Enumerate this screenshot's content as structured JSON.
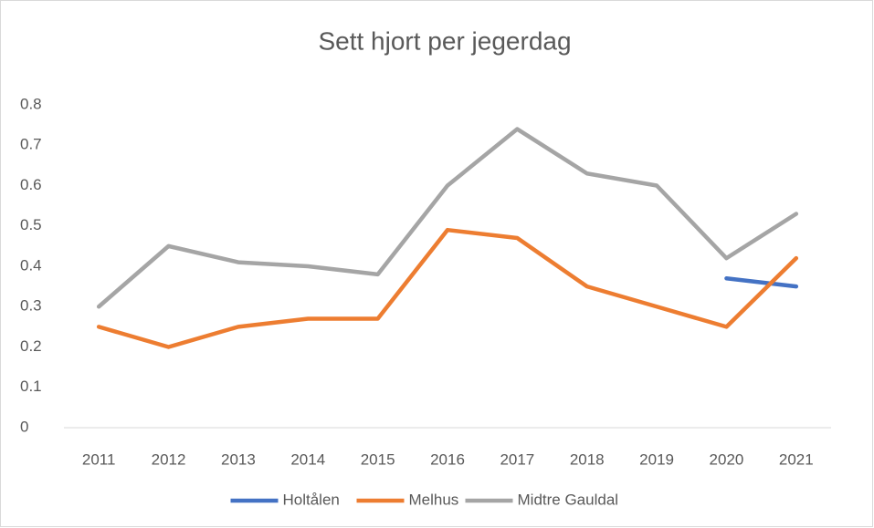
{
  "chart_data": {
    "type": "line",
    "title": "Sett hjort per jegerdag",
    "categories": [
      "2011",
      "2012",
      "2013",
      "2014",
      "2015",
      "2016",
      "2017",
      "2018",
      "2019",
      "2020",
      "2021"
    ],
    "series": [
      {
        "name": "Holtålen",
        "color": "#4472c4",
        "values": [
          null,
          null,
          null,
          null,
          null,
          null,
          null,
          null,
          null,
          0.37,
          0.35
        ]
      },
      {
        "name": "Melhus",
        "color": "#ed7d31",
        "values": [
          0.25,
          0.2,
          0.25,
          0.27,
          0.27,
          0.49,
          0.47,
          0.35,
          0.3,
          0.25,
          0.42
        ]
      },
      {
        "name": "Midtre Gauldal",
        "color": "#a5a5a5",
        "values": [
          0.3,
          0.45,
          0.41,
          0.4,
          0.38,
          0.6,
          0.74,
          0.63,
          0.6,
          0.42,
          0.53
        ]
      }
    ],
    "ylim": [
      0,
      0.8
    ],
    "yticks": [
      0,
      0.1,
      0.2,
      0.3,
      0.4,
      0.5,
      0.6,
      0.7,
      0.8
    ],
    "grid": false,
    "legend": "bottom"
  }
}
